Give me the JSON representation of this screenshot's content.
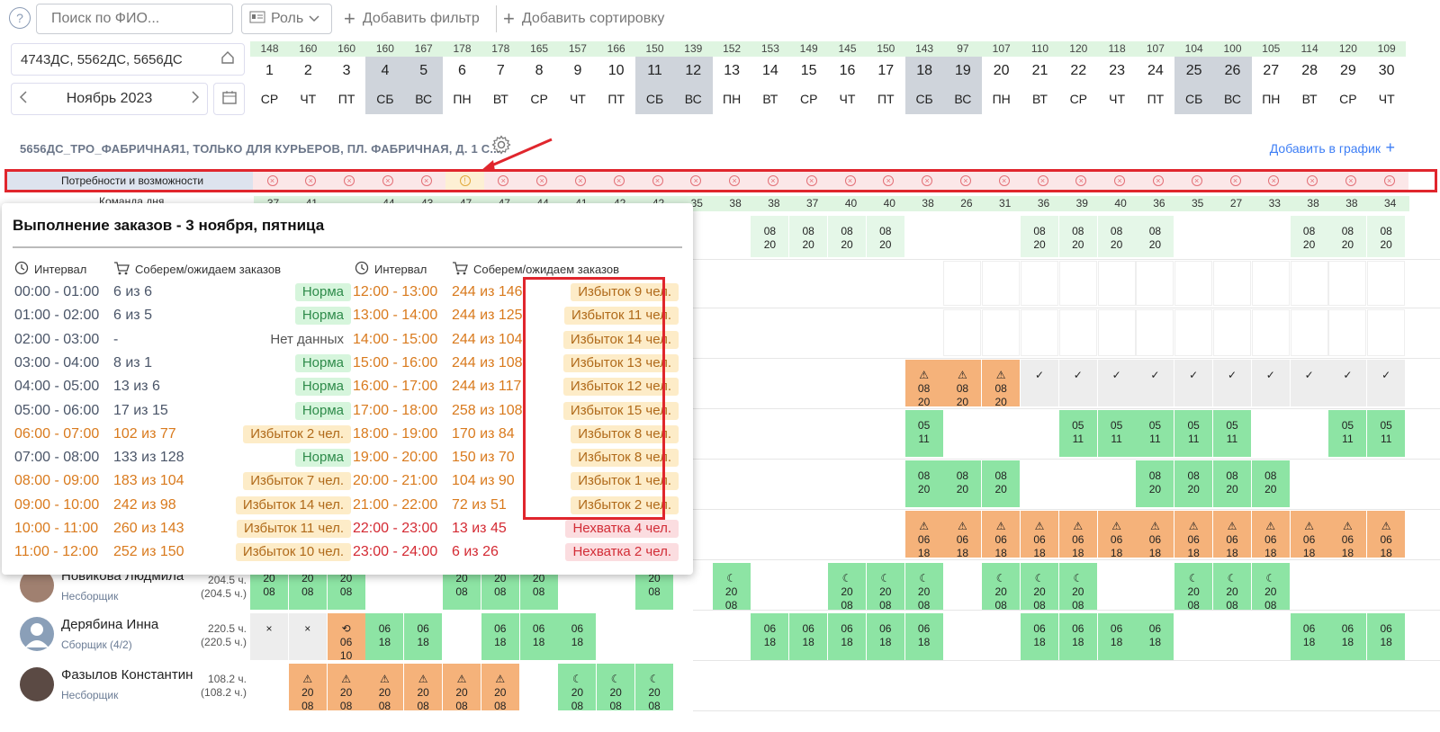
{
  "toolbar": {
    "search_placeholder": "Поиск по ФИО...",
    "role_label": "Роль",
    "add_filter": "Добавить фильтр",
    "add_sort": "Добавить сортировку"
  },
  "left": {
    "stores": "4743ДС, 5562ДС, 5656ДС",
    "month": "Ноябрь 2023"
  },
  "days": [
    {
      "cnt": "148",
      "num": "1",
      "wd": "СР",
      "we": false
    },
    {
      "cnt": "160",
      "num": "2",
      "wd": "ЧТ",
      "we": false
    },
    {
      "cnt": "160",
      "num": "3",
      "wd": "ПТ",
      "we": false
    },
    {
      "cnt": "160",
      "num": "4",
      "wd": "СБ",
      "we": true
    },
    {
      "cnt": "167",
      "num": "5",
      "wd": "ВС",
      "we": true
    },
    {
      "cnt": "178",
      "num": "6",
      "wd": "ПН",
      "we": false
    },
    {
      "cnt": "178",
      "num": "7",
      "wd": "ВТ",
      "we": false
    },
    {
      "cnt": "165",
      "num": "8",
      "wd": "СР",
      "we": false
    },
    {
      "cnt": "157",
      "num": "9",
      "wd": "ЧТ",
      "we": false
    },
    {
      "cnt": "166",
      "num": "10",
      "wd": "ПТ",
      "we": false
    },
    {
      "cnt": "150",
      "num": "11",
      "wd": "СБ",
      "we": true
    },
    {
      "cnt": "139",
      "num": "12",
      "wd": "ВС",
      "we": true
    },
    {
      "cnt": "152",
      "num": "13",
      "wd": "ПН",
      "we": false
    },
    {
      "cnt": "153",
      "num": "14",
      "wd": "ВТ",
      "we": false
    },
    {
      "cnt": "149",
      "num": "15",
      "wd": "СР",
      "we": false
    },
    {
      "cnt": "145",
      "num": "16",
      "wd": "ЧТ",
      "we": false
    },
    {
      "cnt": "150",
      "num": "17",
      "wd": "ПТ",
      "we": false
    },
    {
      "cnt": "143",
      "num": "18",
      "wd": "СБ",
      "we": true
    },
    {
      "cnt": "97",
      "num": "19",
      "wd": "ВС",
      "we": true
    },
    {
      "cnt": "107",
      "num": "20",
      "wd": "ПН",
      "we": false
    },
    {
      "cnt": "110",
      "num": "21",
      "wd": "ВТ",
      "we": false
    },
    {
      "cnt": "120",
      "num": "22",
      "wd": "СР",
      "we": false
    },
    {
      "cnt": "118",
      "num": "23",
      "wd": "ЧТ",
      "we": false
    },
    {
      "cnt": "107",
      "num": "24",
      "wd": "ПТ",
      "we": false
    },
    {
      "cnt": "104",
      "num": "25",
      "wd": "СБ",
      "we": true
    },
    {
      "cnt": "100",
      "num": "26",
      "wd": "ВС",
      "we": true
    },
    {
      "cnt": "105",
      "num": "27",
      "wd": "ПН",
      "we": false
    },
    {
      "cnt": "114",
      "num": "28",
      "wd": "ВТ",
      "we": false
    },
    {
      "cnt": "120",
      "num": "29",
      "wd": "СР",
      "we": false
    },
    {
      "cnt": "109",
      "num": "30",
      "wd": "ЧТ",
      "we": false
    }
  ],
  "section": {
    "title": "5656ДС_ТРО_ФАБРИЧНАЯ1, ТОЛЬКО ДЛЯ КУРЬЕРОВ, ПЛ. ФАБРИЧНАЯ, Д. 1 С...",
    "add_graph": "Добавить в график"
  },
  "needs": {
    "label": "Потребности и возможности",
    "warn_day": 6
  },
  "team": {
    "label": "Команда дня",
    "values": [
      "37",
      "41",
      "",
      "44",
      "43",
      "47",
      "47",
      "44",
      "41",
      "42",
      "42",
      "35",
      "38",
      "38",
      "37",
      "40",
      "40",
      "38",
      "26",
      "31",
      "36",
      "39",
      "40",
      "36",
      "35",
      "27",
      "33",
      "38",
      "38",
      "34"
    ]
  },
  "people": [
    {
      "name": "Новикова Людмила",
      "role": "Несборщик",
      "hours": "204.5 ч.",
      "hours2": "(204.5 ч.)"
    },
    {
      "name": "Дерябина Инна",
      "role": "Сборщик (4/2)",
      "hours": "220.5 ч.",
      "hours2": "(220.5 ч.)"
    },
    {
      "name": "Фазылов Константин",
      "role": "Несборщик",
      "hours": "108.2 ч.",
      "hours2": "(108.2 ч.)"
    }
  ],
  "popup": {
    "title": "Выполнение заказов - 3 ноября, пятница",
    "hdr_interval": "Интервал",
    "hdr_orders": "Соберем/ожидаем заказов",
    "left": [
      {
        "i": "00:00 - 01:00",
        "c": "6 из 6",
        "s": "Норма",
        "t": "norma"
      },
      {
        "i": "01:00 - 02:00",
        "c": "6 из 5",
        "s": "Норма",
        "t": "norma"
      },
      {
        "i": "02:00 - 03:00",
        "c": "-",
        "s": "Нет данных",
        "t": "nodata"
      },
      {
        "i": "03:00 - 04:00",
        "c": "8 из 1",
        "s": "Норма",
        "t": "norma"
      },
      {
        "i": "04:00 - 05:00",
        "c": "13 из 6",
        "s": "Норма",
        "t": "norma"
      },
      {
        "i": "05:00 - 06:00",
        "c": "17 из 15",
        "s": "Норма",
        "t": "norma"
      },
      {
        "i": "06:00 - 07:00",
        "c": "102 из 77",
        "s": "Избыток 2 чел.",
        "t": "izb"
      },
      {
        "i": "07:00 - 08:00",
        "c": "133 из 128",
        "s": "Норма",
        "t": "norma"
      },
      {
        "i": "08:00 - 09:00",
        "c": "183 из 104",
        "s": "Избыток 7 чел.",
        "t": "izb"
      },
      {
        "i": "09:00 - 10:00",
        "c": "242 из 98",
        "s": "Избыток 14 чел.",
        "t": "izb"
      },
      {
        "i": "10:00 - 11:00",
        "c": "260 из 143",
        "s": "Избыток 11 чел.",
        "t": "izb"
      },
      {
        "i": "11:00 - 12:00",
        "c": "252 из 150",
        "s": "Избыток 10 чел.",
        "t": "izb"
      }
    ],
    "right": [
      {
        "i": "12:00 - 13:00",
        "c": "244 из 146",
        "s": "Избыток 9 чел.",
        "t": "izb"
      },
      {
        "i": "13:00 - 14:00",
        "c": "244 из 125",
        "s": "Избыток 11 чел.",
        "t": "izb"
      },
      {
        "i": "14:00 - 15:00",
        "c": "244 из 104",
        "s": "Избыток 14 чел.",
        "t": "izb"
      },
      {
        "i": "15:00 - 16:00",
        "c": "244 из 108",
        "s": "Избыток 13 чел.",
        "t": "izb"
      },
      {
        "i": "16:00 - 17:00",
        "c": "244 из 117",
        "s": "Избыток 12 чел.",
        "t": "izb"
      },
      {
        "i": "17:00 - 18:00",
        "c": "258 из 108",
        "s": "Избыток 15 чел.",
        "t": "izb"
      },
      {
        "i": "18:00 - 19:00",
        "c": "170 из 84",
        "s": "Избыток 8 чел.",
        "t": "izb"
      },
      {
        "i": "19:00 - 20:00",
        "c": "150 из 70",
        "s": "Избыток 8 чел.",
        "t": "izb"
      },
      {
        "i": "20:00 - 21:00",
        "c": "104 из 90",
        "s": "Избыток 1 чел.",
        "t": "izb"
      },
      {
        "i": "21:00 - 22:00",
        "c": "72 из 51",
        "s": "Избыток 2 чел.",
        "t": "izb"
      },
      {
        "i": "22:00 - 23:00",
        "c": "13 из 45",
        "s": "Нехватка 4 чел.",
        "t": "nekh"
      },
      {
        "i": "23:00 - 24:00",
        "c": "6 из 26",
        "s": "Нехватка 2 чел.",
        "t": "nekh"
      }
    ]
  }
}
